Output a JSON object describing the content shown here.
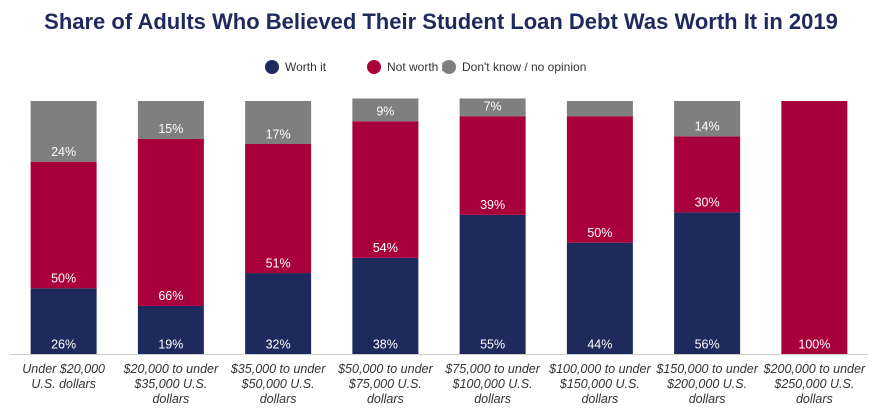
{
  "chart_data": {
    "type": "stacked-bar",
    "title": "Share of Adults Who Believed Their Student Loan Debt Was Worth It in 2019",
    "categories": [
      "Under $20,000 U.S. dollars",
      "$20,000 to under $35,000 U.S. dollars",
      "$35,000 to under $50,000 U.S. dollars",
      "$50,000 to under $75,000 U.S. dollars",
      "$75,000 to under $100,000 U.S. dollars",
      "$100,000 to under $150,000 U.S. dollars",
      "$150,000 to under $200,000 U.S. dollars",
      "$200,000 to under $250,000 U.S. dollars"
    ],
    "series": [
      {
        "name": "Worth it",
        "color": "#1f2a5c",
        "values": [
          26,
          19,
          32,
          38,
          55,
          44,
          56,
          0
        ],
        "value_labels": [
          "26%",
          "19%",
          "32%",
          "38%",
          "55%",
          "44%",
          "56%",
          null
        ]
      },
      {
        "name": "Not worth it",
        "color": "#a8003b",
        "values": [
          50,
          66,
          51,
          54,
          39,
          50,
          30,
          100
        ],
        "value_labels": [
          "50%",
          "66%",
          "51%",
          "54%",
          "39%",
          "50%",
          "30%",
          "100%"
        ]
      },
      {
        "name": "Don't know / no opinion",
        "color": "#7f7f7f",
        "values": [
          24,
          15,
          17,
          9,
          7,
          6,
          14,
          0
        ],
        "value_labels": [
          "24%",
          "15%",
          "17%",
          "9%",
          "7%",
          null,
          "14%",
          null
        ]
      }
    ],
    "ylim": [
      0,
      100
    ]
  }
}
